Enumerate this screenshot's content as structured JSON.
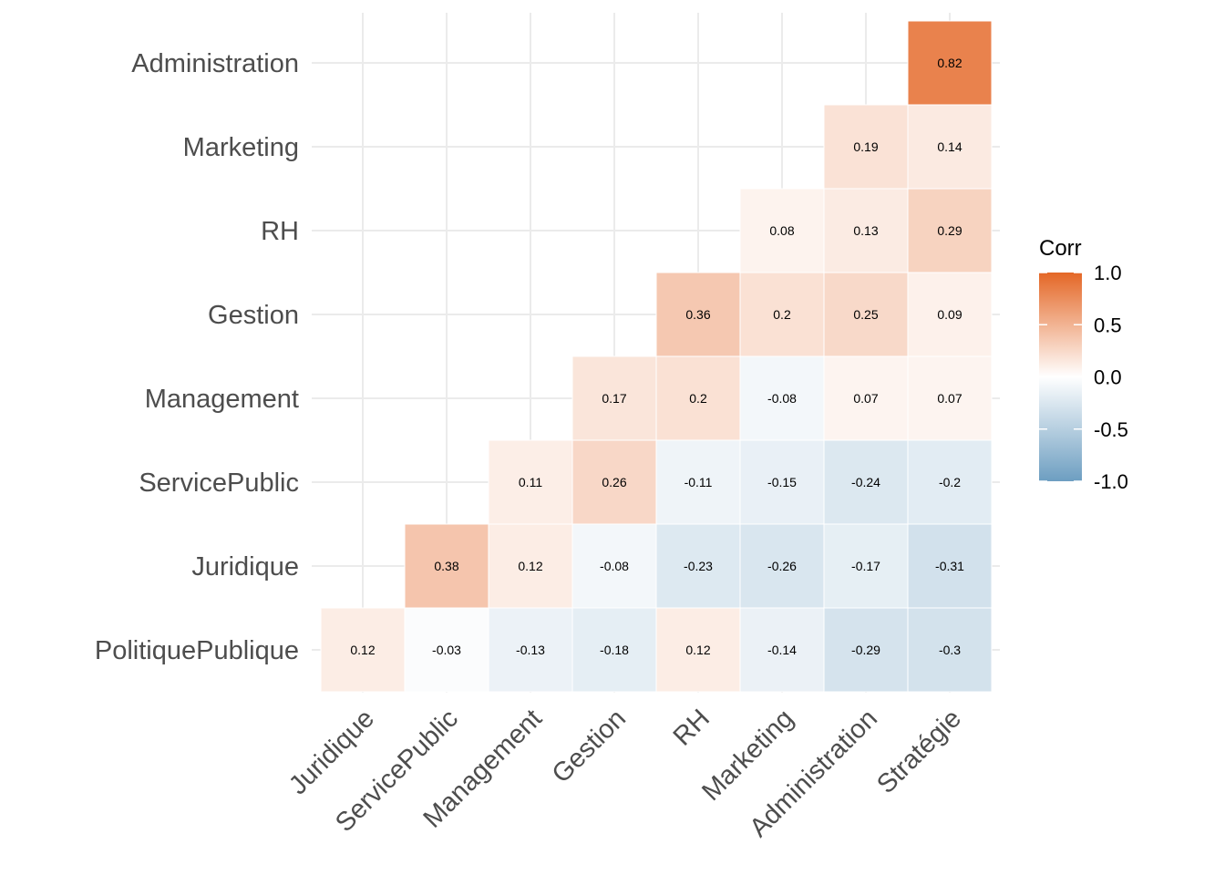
{
  "chart_data": {
    "type": "heatmap",
    "subtype": "correlation-lower-triangle",
    "x_categories": [
      "Juridique",
      "ServicePublic",
      "Management",
      "Gestion",
      "RH",
      "Marketing",
      "Administration",
      "Stratégie"
    ],
    "y_categories": [
      "PolitiquePublique",
      "Juridique",
      "ServicePublic",
      "Management",
      "Gestion",
      "RH",
      "Marketing",
      "Administration"
    ],
    "values": [
      [
        0.12,
        -0.03,
        -0.13,
        -0.18,
        0.12,
        -0.14,
        -0.29,
        -0.3
      ],
      [
        null,
        0.38,
        0.12,
        -0.08,
        -0.23,
        -0.26,
        -0.17,
        -0.31
      ],
      [
        null,
        null,
        0.11,
        0.26,
        -0.11,
        -0.15,
        -0.24,
        -0.2
      ],
      [
        null,
        null,
        null,
        0.17,
        0.2,
        -0.08,
        0.07,
        0.07
      ],
      [
        null,
        null,
        null,
        null,
        0.36,
        0.2,
        0.25,
        0.09
      ],
      [
        null,
        null,
        null,
        null,
        null,
        0.08,
        0.13,
        0.29
      ],
      [
        null,
        null,
        null,
        null,
        null,
        null,
        0.19,
        0.14
      ],
      [
        null,
        null,
        null,
        null,
        null,
        null,
        null,
        0.82
      ]
    ],
    "labels": [
      [
        "0.12",
        "-0.03",
        "-0.13",
        "-0.18",
        "0.12",
        "-0.14",
        "-0.29",
        "-0.3"
      ],
      [
        null,
        "0.38",
        "0.12",
        "-0.08",
        "-0.23",
        "-0.26",
        "-0.17",
        "-0.31"
      ],
      [
        null,
        null,
        "0.11",
        "0.26",
        "-0.11",
        "-0.15",
        "-0.24",
        "-0.2"
      ],
      [
        null,
        null,
        null,
        "0.17",
        "0.2",
        "-0.08",
        "0.07",
        "0.07"
      ],
      [
        null,
        null,
        null,
        null,
        "0.36",
        "0.2",
        "0.25",
        "0.09"
      ],
      [
        null,
        null,
        null,
        null,
        null,
        "0.08",
        "0.13",
        "0.29"
      ],
      [
        null,
        null,
        null,
        null,
        null,
        null,
        "0.19",
        "0.14"
      ],
      [
        null,
        null,
        null,
        null,
        null,
        null,
        null,
        "0.82"
      ]
    ],
    "color_scale": {
      "low": "#6d9ec1",
      "mid": "#ffffff",
      "high": "#e46726",
      "limits": [
        -1,
        1
      ]
    },
    "legend": {
      "title": "Corr",
      "ticks": [
        "1.0",
        "0.5",
        "0.0",
        "-0.5",
        "-1.0"
      ],
      "tick_values": [
        1,
        0.5,
        0,
        -0.5,
        -1
      ],
      "placement": "right"
    },
    "grid_color": "#ebebeb"
  }
}
